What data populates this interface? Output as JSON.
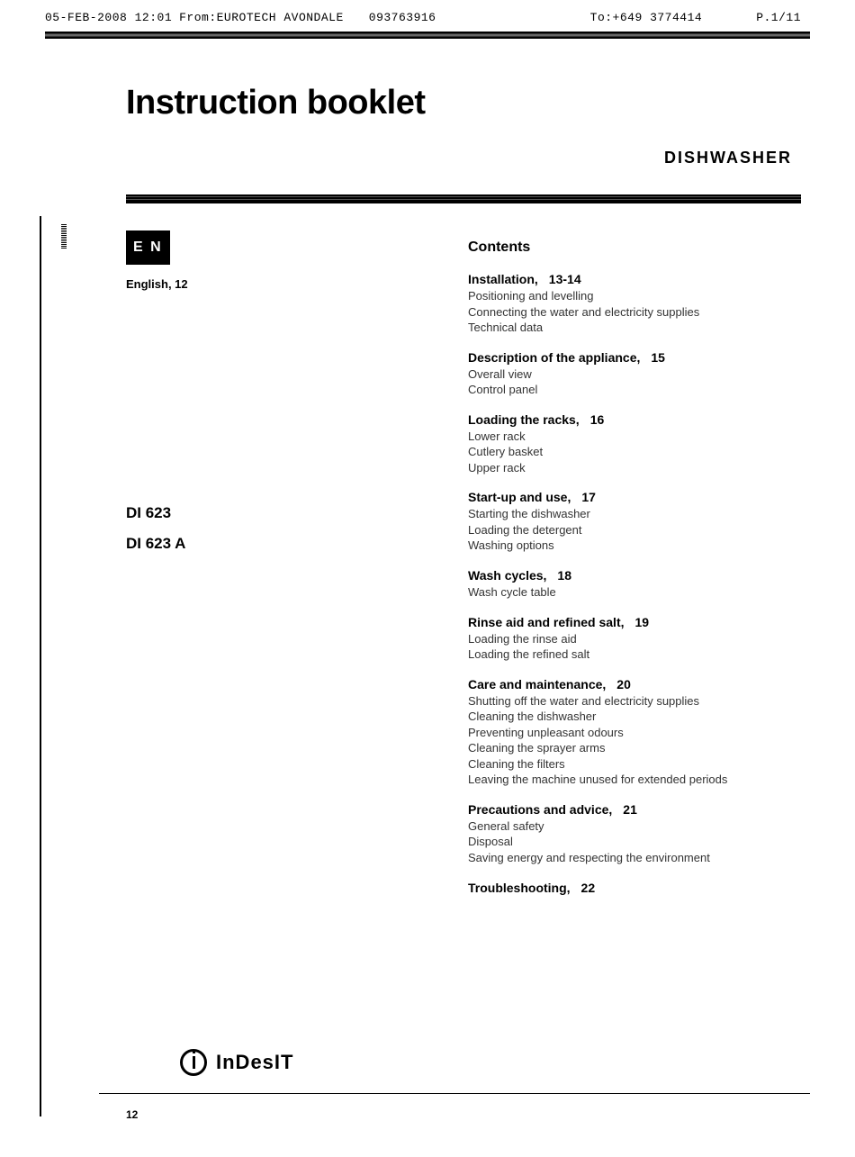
{
  "fax": {
    "date": "05-FEB-2008 12:01",
    "from_label": "From:EUROTECH AVONDALE",
    "from_number": "093763916",
    "to": "To:+649 3774414",
    "page": "P.1/11"
  },
  "title": "Instruction booklet",
  "product_type": "DISHWASHER",
  "language": {
    "badge": "E N",
    "label": "English, 12"
  },
  "models": {
    "m1": "DI 623",
    "m2": "DI 623 A"
  },
  "contents_title": "Contents",
  "toc": [
    {
      "heading": "Installation,",
      "pages": "13-14",
      "items": [
        "Positioning and levelling",
        "Connecting the water and electricity supplies",
        "Technical data"
      ]
    },
    {
      "heading": "Description of the appliance,",
      "pages": "15",
      "items": [
        "Overall view",
        "Control panel"
      ]
    },
    {
      "heading": "Loading the racks,",
      "pages": "16",
      "items": [
        "Lower rack",
        "Cutlery basket",
        "Upper rack"
      ]
    },
    {
      "heading": "Start-up and use,",
      "pages": "17",
      "items": [
        "Starting the dishwasher",
        "Loading the detergent",
        "Washing options"
      ]
    },
    {
      "heading": "Wash cycles,",
      "pages": "18",
      "items": [
        "Wash cycle table"
      ]
    },
    {
      "heading": "Rinse aid and refined salt,",
      "pages": "19",
      "items": [
        "Loading the rinse aid",
        "Loading the refined salt"
      ]
    },
    {
      "heading": "Care and maintenance,",
      "pages": "20",
      "items": [
        "Shutting off the water and electricity supplies",
        "Cleaning the dishwasher",
        "Preventing unpleasant odours",
        "Cleaning the sprayer arms",
        "Cleaning the filters",
        "Leaving the machine unused for extended periods"
      ]
    },
    {
      "heading": "Precautions and advice,",
      "pages": "21",
      "items": [
        "General safety",
        "Disposal",
        "Saving energy and respecting the environment"
      ]
    },
    {
      "heading": "Troubleshooting,",
      "pages": "22",
      "items": []
    }
  ],
  "brand": "InDesIT",
  "page_number": "12"
}
